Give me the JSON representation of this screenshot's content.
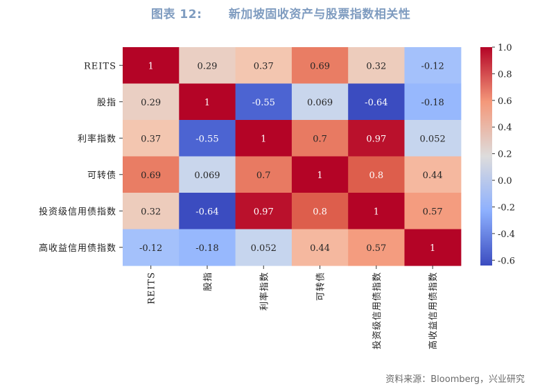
{
  "title": "图表 12:      新加坡固收资产与股票指数相关性",
  "source": "资料来源：Bloomberg，兴业研究",
  "chart_data": {
    "type": "heatmap",
    "title": "图表 12:      新加坡固收资产与股票指数相关性",
    "row_labels": [
      "REITS",
      "股指",
      "利率指数",
      "可转债",
      "投资级信用债指数",
      "高收益信用债指数"
    ],
    "col_labels": [
      "REITS",
      "股指",
      "利率指数",
      "可转债",
      "投资级信用债指数",
      "高收益信用债指数"
    ],
    "values": [
      [
        1,
        0.29,
        0.37,
        0.69,
        0.32,
        -0.12
      ],
      [
        0.29,
        1,
        -0.55,
        0.069,
        -0.64,
        -0.18
      ],
      [
        0.37,
        -0.55,
        1,
        0.7,
        0.97,
        0.052
      ],
      [
        0.69,
        0.069,
        0.7,
        1,
        0.8,
        0.44
      ],
      [
        0.32,
        -0.64,
        0.97,
        0.8,
        1,
        0.57
      ],
      [
        -0.12,
        -0.18,
        0.052,
        0.44,
        0.57,
        1
      ]
    ],
    "value_labels": [
      [
        "1",
        "0.29",
        "0.37",
        "0.69",
        "0.32",
        "-0.12"
      ],
      [
        "0.29",
        "1",
        "-0.55",
        "0.069",
        "-0.64",
        "-0.18"
      ],
      [
        "0.37",
        "-0.55",
        "1",
        "0.7",
        "0.97",
        "0.052"
      ],
      [
        "0.69",
        "0.069",
        "0.7",
        "1",
        "0.8",
        "0.44"
      ],
      [
        "0.32",
        "-0.64",
        "0.97",
        "0.8",
        "1",
        "0.57"
      ],
      [
        "-0.12",
        "-0.18",
        "0.052",
        "0.44",
        "0.57",
        "1"
      ]
    ],
    "colormap": "coolwarm",
    "vmin": -0.64,
    "vmax": 1.0,
    "colorbar_ticks": [
      1.0,
      0.8,
      0.6,
      0.4,
      0.2,
      0.0,
      -0.2,
      -0.4,
      -0.6
    ],
    "colorbar_tick_labels": [
      "1.0",
      "0.8",
      "0.6",
      "0.4",
      "0.2",
      "0.0",
      "-0.2",
      "-0.4",
      "-0.6"
    ],
    "legend_position": "right"
  }
}
